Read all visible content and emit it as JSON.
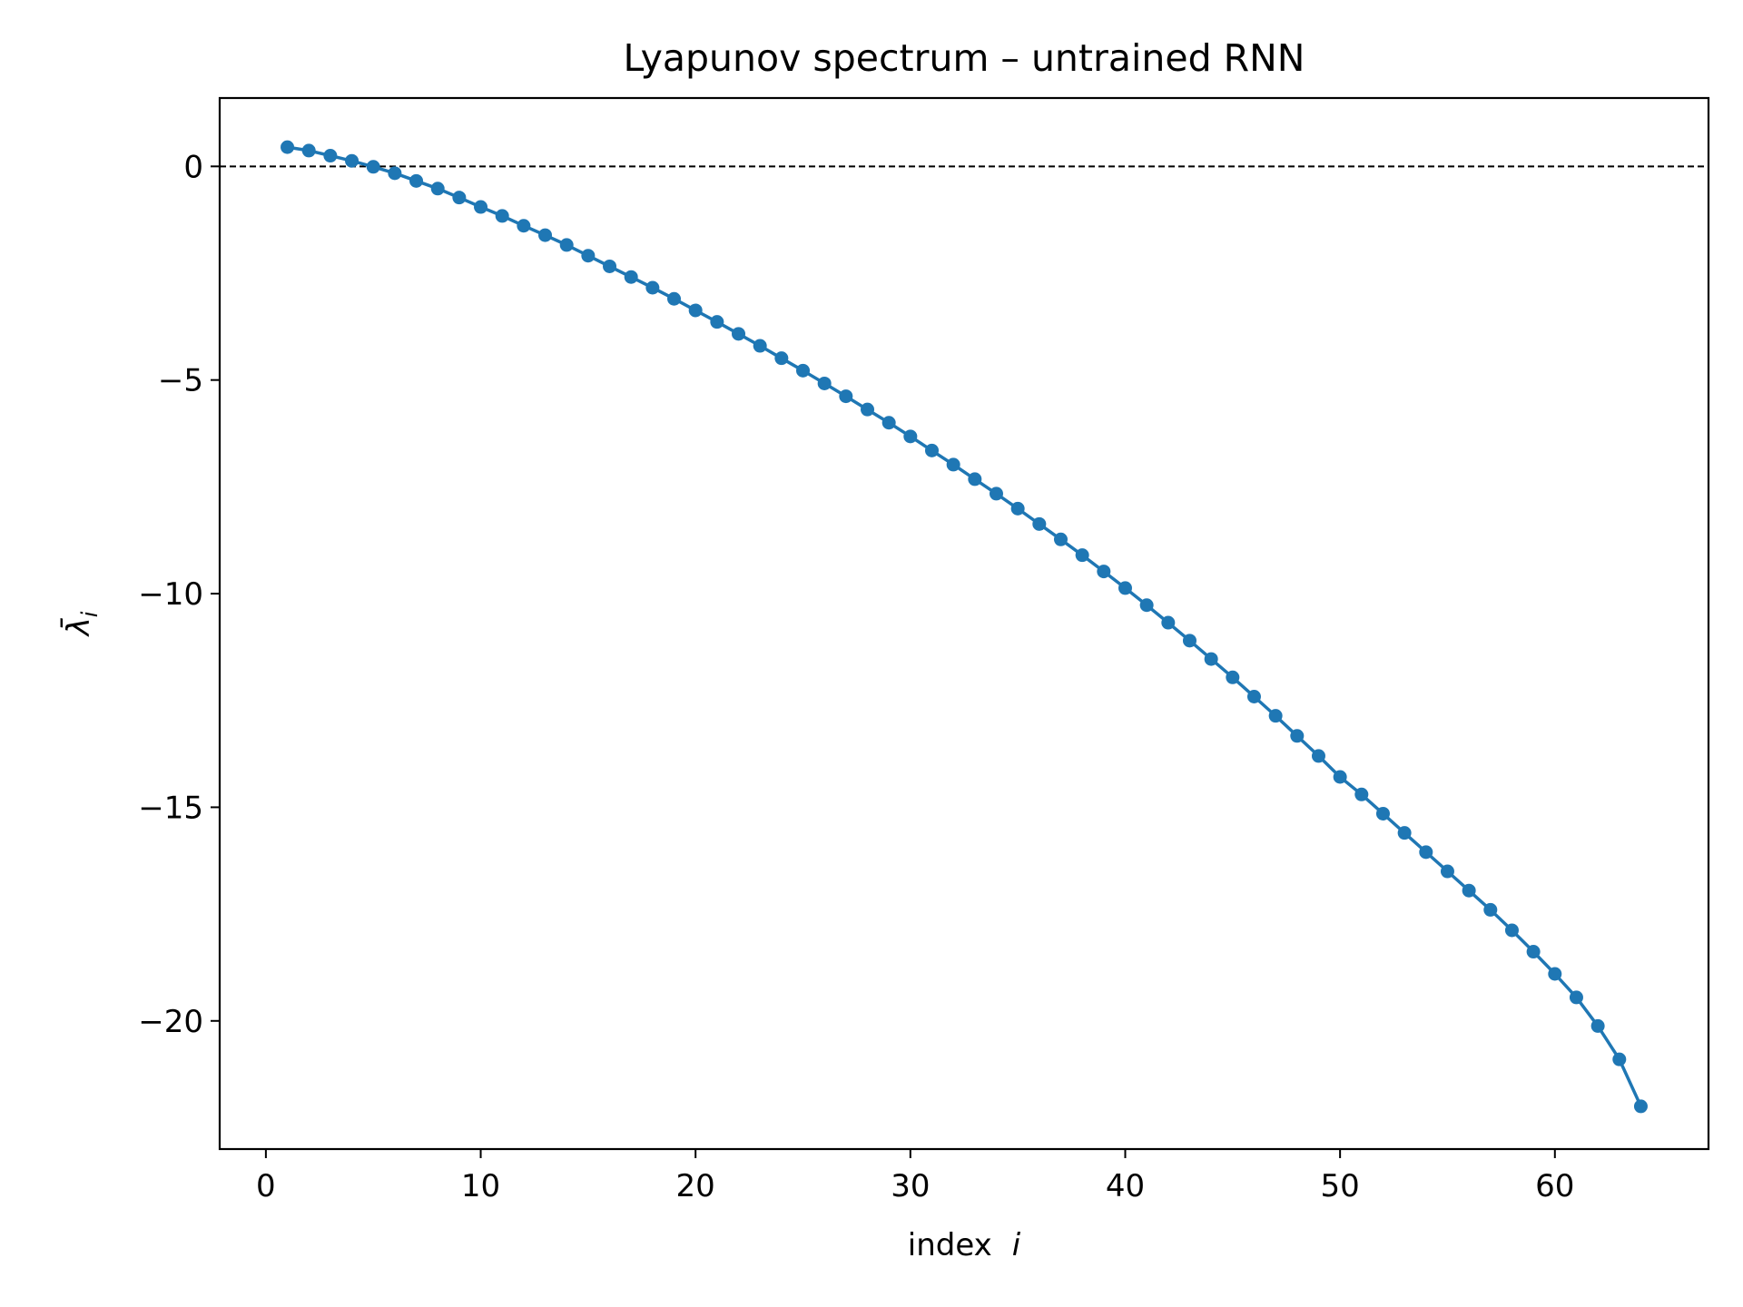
{
  "chart_data": {
    "type": "line",
    "title": "Lyapunov spectrum – untrained RNN",
    "xlabel": "index",
    "xlabel_var": "i",
    "ylabel_main": "λ̄",
    "ylabel_sub": "i",
    "xlim": [
      -2.15,
      67.15
    ],
    "ylim": [
      -23.0,
      1.6
    ],
    "xticks": [
      0,
      10,
      20,
      30,
      40,
      50,
      60
    ],
    "xtick_labels": [
      "0",
      "10",
      "20",
      "30",
      "40",
      "50",
      "60"
    ],
    "yticks": [
      0,
      -5,
      -10,
      -15,
      -20
    ],
    "ytick_labels": [
      "0",
      "−5",
      "−10",
      "−15",
      "−20"
    ],
    "grid": false,
    "reference_line": {
      "y": 0,
      "style": "dashed",
      "color": "#000000"
    },
    "series": [
      {
        "color": "#1f77b4",
        "marker": "circle",
        "x": [
          1,
          2,
          3,
          4,
          5,
          6,
          7,
          8,
          9,
          10,
          11,
          12,
          13,
          14,
          15,
          16,
          17,
          18,
          19,
          20,
          21,
          22,
          23,
          24,
          25,
          26,
          27,
          28,
          29,
          30,
          31,
          32,
          33,
          34,
          35,
          36,
          37,
          38,
          39,
          40,
          41,
          42,
          43,
          44,
          45,
          46,
          47,
          48,
          49,
          50,
          51,
          52,
          53,
          54,
          55,
          56,
          57,
          58,
          59,
          60,
          61,
          62,
          63,
          64
        ],
        "y": [
          0.45,
          0.37,
          0.25,
          0.13,
          -0.01,
          -0.16,
          -0.34,
          -0.52,
          -0.73,
          -0.95,
          -1.16,
          -1.39,
          -1.61,
          -1.84,
          -2.09,
          -2.34,
          -2.59,
          -2.84,
          -3.1,
          -3.37,
          -3.64,
          -3.92,
          -4.2,
          -4.49,
          -4.78,
          -5.08,
          -5.38,
          -5.69,
          -6.0,
          -6.32,
          -6.65,
          -6.98,
          -7.32,
          -7.66,
          -8.01,
          -8.37,
          -8.73,
          -9.1,
          -9.48,
          -9.87,
          -10.27,
          -10.68,
          -11.1,
          -11.53,
          -11.96,
          -12.41,
          -12.86,
          -13.33,
          -13.8,
          -14.29,
          -14.7,
          -15.15,
          -15.6,
          -16.05,
          -16.5,
          -16.95,
          -17.4,
          -17.88,
          -18.38,
          -18.9,
          -19.45,
          -20.12,
          -20.9,
          -22.0
        ]
      }
    ]
  }
}
